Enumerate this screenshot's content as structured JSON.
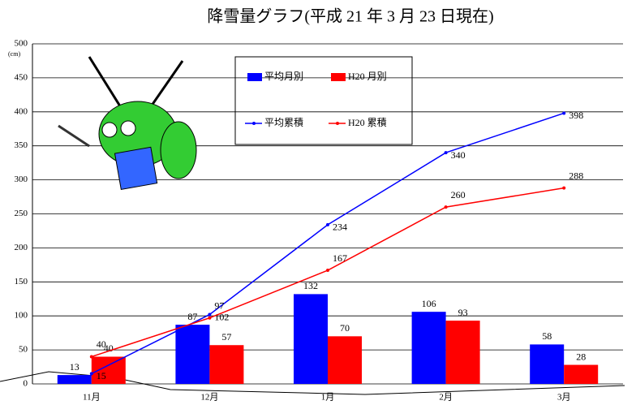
{
  "chart_data": {
    "type": "combo",
    "title": "降雪量グラフ(平成 21 年 3 月 23 日現在)",
    "y_unit": "(cm)",
    "categories": [
      "11月",
      "12月",
      "1月",
      "2月",
      "3月"
    ],
    "series": [
      {
        "name": "平均月別",
        "type": "bar",
        "color": "#0000ff",
        "values": [
          13,
          87,
          132,
          106,
          58
        ]
      },
      {
        "name": "H20 月別",
        "type": "bar",
        "color": "#ff0000",
        "values": [
          40,
          57,
          70,
          93,
          28
        ]
      },
      {
        "name": "平均累積",
        "type": "line",
        "color": "#0000ff",
        "values": [
          15,
          102,
          234,
          340,
          398
        ]
      },
      {
        "name": "H20 累積",
        "type": "line",
        "color": "#ff0000",
        "values": [
          40,
          97,
          167,
          260,
          288
        ]
      }
    ],
    "ylim": [
      0,
      500
    ],
    "yticks": [
      0,
      50,
      100,
      150,
      200,
      250,
      300,
      350,
      400,
      450,
      500
    ],
    "grid": true
  }
}
